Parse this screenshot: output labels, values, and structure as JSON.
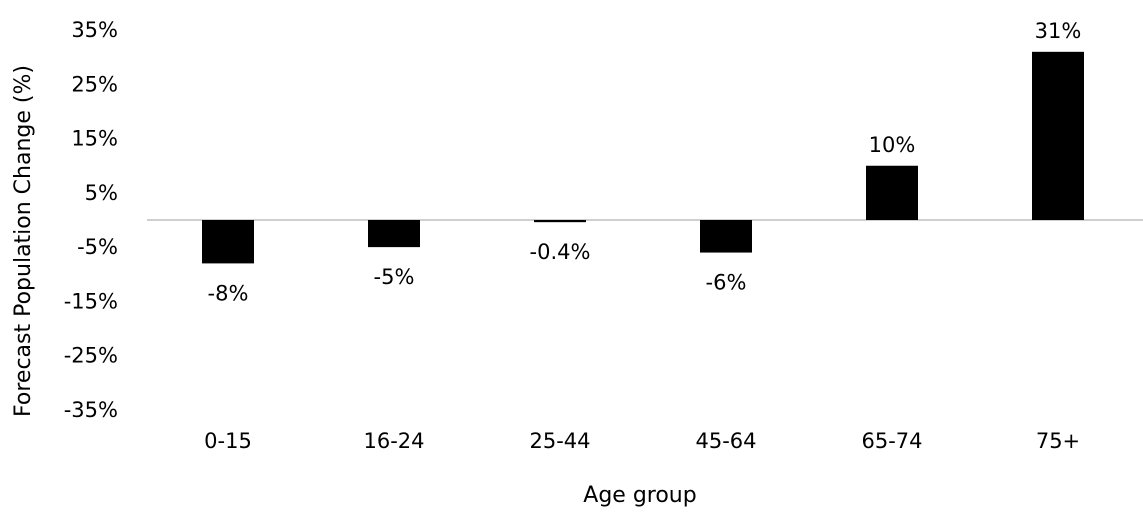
{
  "chart_data": {
    "type": "bar",
    "title": "",
    "xlabel": "Age group",
    "ylabel": "Forecast Population Change (%)",
    "categories": [
      "0-15",
      "16-24",
      "25-44",
      "45-64",
      "65-74",
      "75+"
    ],
    "values": [
      -8,
      -5,
      -0.4,
      -6,
      10,
      31
    ],
    "data_labels": [
      "-8%",
      "-5%",
      "-0.4%",
      "-6%",
      "10%",
      "31%"
    ],
    "yticks": [
      35,
      25,
      15,
      5,
      -5,
      -15,
      -25,
      -35
    ],
    "ytick_labels": [
      "35%",
      "25%",
      "15%",
      "5%",
      "-5%",
      "-15%",
      "-25%",
      "-35%"
    ],
    "ylim": [
      -38,
      38
    ],
    "grid": false,
    "legend": "none",
    "colors": {
      "bar": "#000000",
      "zero_line": "#bfbfbf",
      "text": "#000000"
    }
  }
}
